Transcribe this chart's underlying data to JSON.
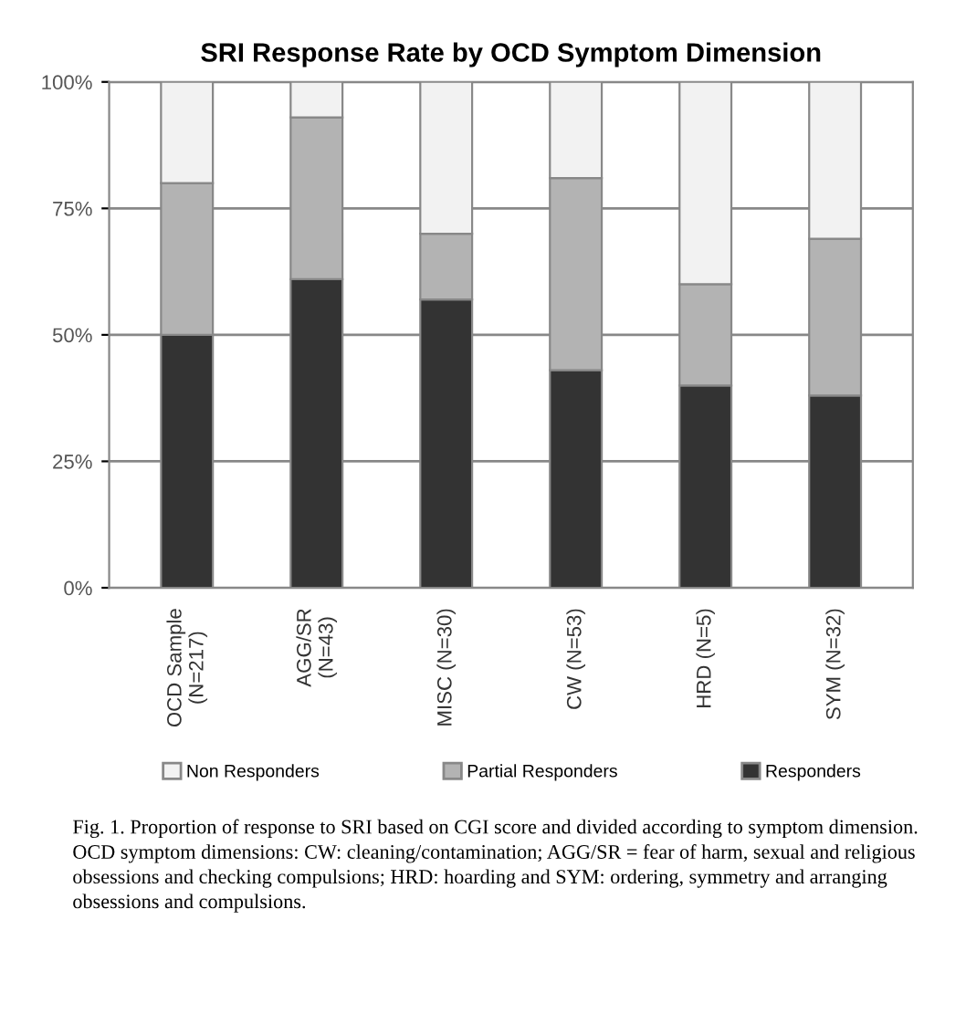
{
  "chart_data": {
    "type": "bar",
    "title": "SRI Response Rate by OCD Symptom Dimension",
    "categories": [
      "OCD Sample\n(N=217)",
      "AGG/SR\n(N=43)",
      "MISC (N=30)",
      "CW (N=53)",
      "HRD (N=5)",
      "SYM (N=32)"
    ],
    "stacked": true,
    "series": [
      {
        "name": "Responders",
        "color": "#333333",
        "values": [
          50,
          61,
          57,
          43,
          40,
          38
        ]
      },
      {
        "name": "Partial Responders",
        "color": "#b3b3b3",
        "values": [
          30,
          32,
          13,
          38,
          20,
          31
        ]
      },
      {
        "name": "Non Responders",
        "color": "#f2f2f2",
        "values": [
          20,
          7,
          30,
          19,
          40,
          31
        ]
      }
    ],
    "ylim": [
      0,
      100
    ],
    "yticks": [
      {
        "value": 0,
        "label": "0%"
      },
      {
        "value": 25,
        "label": "25%"
      },
      {
        "value": 50,
        "label": "50%"
      },
      {
        "value": 75,
        "label": "75%"
      },
      {
        "value": 100,
        "label": "100%"
      }
    ],
    "grid": "y",
    "legend": "bottom",
    "annotations": [
      "Fig. 1. Proportion of response to SRI based on CGI score and divided according to symptom dimension. OCD symptom dimensions: CW: cleaning/contamination; AGG/SR = fear of harm, sexual and religious obsessions and checking compulsions; HRD: hoarding and SYM: ordering, symmetry and arranging obsessions and compulsions."
    ]
  }
}
